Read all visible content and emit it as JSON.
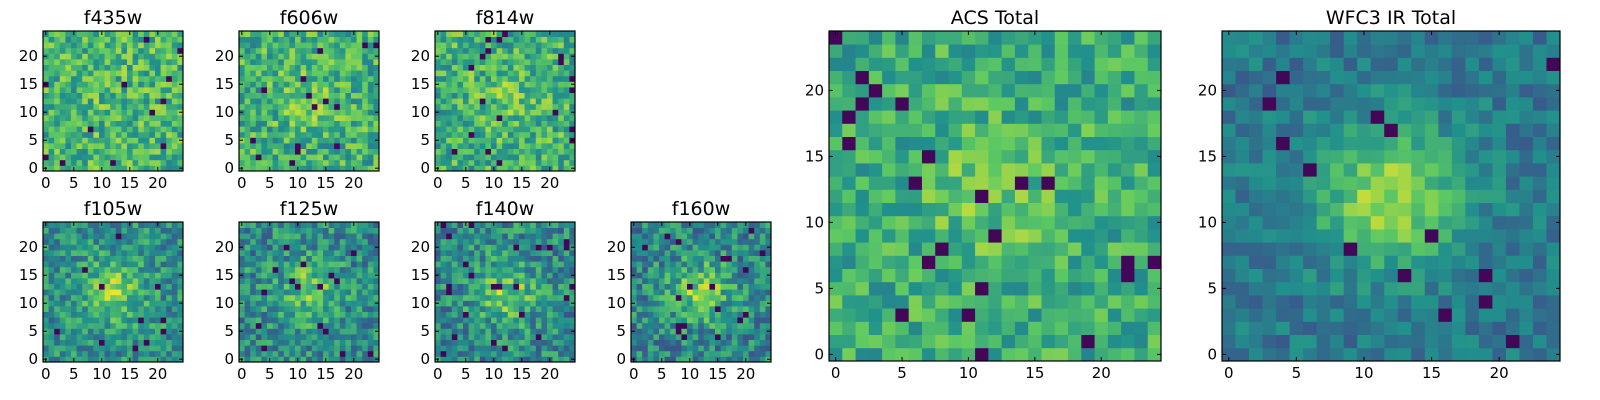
{
  "figure": {
    "colormap": "viridis",
    "colormap_colors": [
      "#440154",
      "#3b528b",
      "#21918c",
      "#5ec962",
      "#fde725"
    ]
  },
  "chart_data": [
    {
      "type": "heatmap",
      "title": "f435w",
      "size": 25,
      "xlim": [
        0,
        24
      ],
      "ylim": [
        0,
        24
      ],
      "xticks": [
        0,
        5,
        10,
        15,
        20
      ],
      "yticks": [
        0,
        5,
        10,
        15,
        20
      ],
      "grid": false,
      "legend": "none",
      "center_strength": 0.02,
      "noise": 0.22,
      "base": 0.66
    },
    {
      "type": "heatmap",
      "title": "f606w",
      "size": 25,
      "xlim": [
        0,
        24
      ],
      "ylim": [
        0,
        24
      ],
      "xticks": [
        0,
        5,
        10,
        15,
        20
      ],
      "yticks": [
        0,
        5,
        10,
        15,
        20
      ],
      "grid": false,
      "legend": "none",
      "center_strength": 0.08,
      "noise": 0.22,
      "base": 0.64
    },
    {
      "type": "heatmap",
      "title": "f814w",
      "size": 25,
      "xlim": [
        0,
        24
      ],
      "ylim": [
        0,
        24
      ],
      "xticks": [
        0,
        5,
        10,
        15,
        20
      ],
      "yticks": [
        0,
        5,
        10,
        15,
        20
      ],
      "grid": false,
      "legend": "none",
      "center_strength": 0.08,
      "noise": 0.22,
      "base": 0.64
    },
    {
      "type": "heatmap",
      "title": "f105w",
      "size": 25,
      "xlim": [
        0,
        24
      ],
      "ylim": [
        0,
        24
      ],
      "xticks": [
        0,
        5,
        10,
        15,
        20
      ],
      "yticks": [
        0,
        5,
        10,
        15,
        20
      ],
      "grid": false,
      "legend": "none",
      "center_strength": 0.3,
      "noise": 0.2,
      "base": 0.5
    },
    {
      "type": "heatmap",
      "title": "f125w",
      "size": 25,
      "xlim": [
        0,
        24
      ],
      "ylim": [
        0,
        24
      ],
      "xticks": [
        0,
        5,
        10,
        15,
        20
      ],
      "yticks": [
        0,
        5,
        10,
        15,
        20
      ],
      "grid": false,
      "legend": "none",
      "center_strength": 0.28,
      "noise": 0.22,
      "base": 0.48
    },
    {
      "type": "heatmap",
      "title": "f140w",
      "size": 25,
      "xlim": [
        0,
        24
      ],
      "ylim": [
        0,
        24
      ],
      "xticks": [
        0,
        5,
        10,
        15,
        20
      ],
      "yticks": [
        0,
        5,
        10,
        15,
        20
      ],
      "grid": false,
      "legend": "none",
      "center_strength": 0.3,
      "noise": 0.22,
      "base": 0.47
    },
    {
      "type": "heatmap",
      "title": "f160w",
      "size": 25,
      "xlim": [
        0,
        24
      ],
      "ylim": [
        0,
        24
      ],
      "xticks": [
        0,
        5,
        10,
        15,
        20
      ],
      "yticks": [
        0,
        5,
        10,
        15,
        20
      ],
      "grid": false,
      "legend": "none",
      "center_strength": 0.32,
      "noise": 0.22,
      "base": 0.46
    },
    {
      "type": "heatmap",
      "title": "ACS Total",
      "size": 25,
      "xlim": [
        0,
        24
      ],
      "ylim": [
        0,
        24
      ],
      "xticks": [
        0,
        5,
        10,
        15,
        20
      ],
      "yticks": [
        0,
        5,
        10,
        15,
        20
      ],
      "grid": false,
      "legend": "none",
      "center_strength": 0.12,
      "noise": 0.18,
      "base": 0.62
    },
    {
      "type": "heatmap",
      "title": "WFC3 IR Total",
      "size": 25,
      "xlim": [
        0,
        24
      ],
      "ylim": [
        0,
        24
      ],
      "xticks": [
        0,
        5,
        10,
        15,
        20
      ],
      "yticks": [
        0,
        5,
        10,
        15,
        20
      ],
      "grid": false,
      "legend": "none",
      "center_strength": 0.45,
      "noise": 0.12,
      "base": 0.4
    }
  ]
}
